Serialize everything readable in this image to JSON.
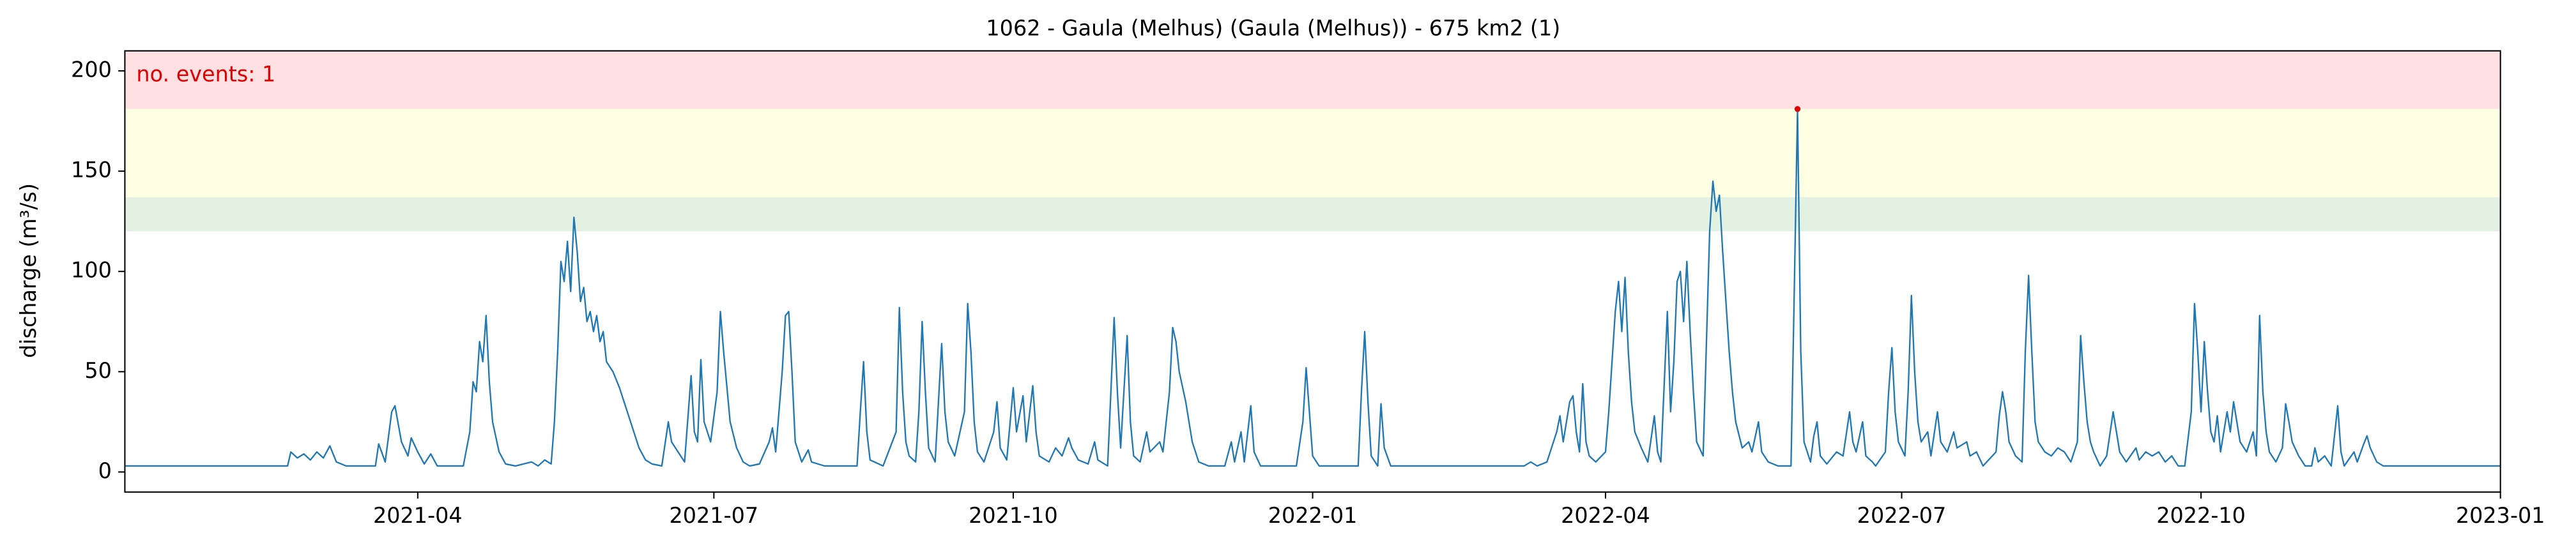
{
  "chart_data": {
    "type": "line",
    "title": "1062 - Gaula (Melhus) (Gaula (Melhus)) - 675 km2 (1)",
    "y_label": "discharge (m³/s)",
    "annotation": "no. events: 1",
    "annotation_color": "#e00000",
    "color": "#1f77b4",
    "xlim": [
      0,
      730
    ],
    "xticks": [
      {
        "value": 90,
        "label": "2021-04"
      },
      {
        "value": 181,
        "label": "2021-07"
      },
      {
        "value": 273,
        "label": "2021-10"
      },
      {
        "value": 365,
        "label": "2022-01"
      },
      {
        "value": 455,
        "label": "2022-04"
      },
      {
        "value": 546,
        "label": "2022-07"
      },
      {
        "value": 638,
        "label": "2022-10"
      },
      {
        "value": 730,
        "label": "2023-01"
      }
    ],
    "ylim": [
      -10,
      210
    ],
    "yticks": [
      0,
      50,
      100,
      150,
      200
    ],
    "thresholds": [
      {
        "value": 120,
        "color": "#e3f1e3"
      },
      {
        "value": 137,
        "color": "#fefee3"
      },
      {
        "value": 181,
        "color": "#ffe1e4"
      }
    ],
    "events": [
      {
        "x": 514,
        "y": 181,
        "color": "#e00000"
      }
    ],
    "x": [
      0,
      50,
      51,
      53,
      55,
      57,
      59,
      61,
      63,
      65,
      68,
      77,
      78,
      80,
      82,
      83,
      85,
      87,
      88,
      90,
      92,
      94,
      96,
      104,
      106,
      107,
      108,
      109,
      110,
      111,
      112,
      113,
      115,
      117,
      120,
      125,
      127,
      129,
      131,
      132,
      133,
      134,
      135,
      136,
      137,
      138,
      139,
      140,
      141,
      142,
      143,
      144,
      145,
      146,
      147,
      148,
      150,
      152,
      154,
      156,
      158,
      160,
      162,
      165,
      167,
      168,
      170,
      172,
      174,
      175,
      176,
      177,
      178,
      180,
      182,
      183,
      184,
      186,
      188,
      190,
      192,
      195,
      198,
      199,
      200,
      202,
      203,
      204,
      205,
      206,
      208,
      210,
      211,
      215,
      225,
      226,
      227,
      228,
      229,
      233,
      237,
      238,
      239,
      240,
      241,
      243,
      244,
      245,
      246,
      247,
      249,
      251,
      252,
      253,
      255,
      258,
      259,
      260,
      261,
      262,
      264,
      267,
      268,
      269,
      271,
      273,
      274,
      276,
      277,
      279,
      280,
      281,
      284,
      286,
      288,
      290,
      291,
      293,
      296,
      298,
      299,
      302,
      304,
      305,
      306,
      308,
      309,
      310,
      312,
      314,
      315,
      318,
      319,
      321,
      322,
      323,
      324,
      326,
      328,
      330,
      333,
      338,
      340,
      341,
      343,
      344,
      346,
      347,
      349,
      360,
      362,
      363,
      364,
      365,
      367,
      379,
      380,
      381,
      382,
      383,
      385,
      386,
      387,
      389,
      430,
      432,
      434,
      437,
      440,
      441,
      442,
      444,
      445,
      446,
      447,
      448,
      449,
      450,
      452,
      455,
      456,
      457,
      458,
      459,
      460,
      461,
      462,
      463,
      464,
      466,
      468,
      470,
      471,
      472,
      474,
      475,
      476,
      477,
      478,
      479,
      480,
      481,
      482,
      483,
      485,
      487,
      488,
      489,
      490,
      491,
      492,
      493,
      494,
      495,
      497,
      499,
      500,
      502,
      503,
      505,
      508,
      512,
      513,
      514,
      515,
      516,
      518,
      519,
      520,
      521,
      523,
      526,
      528,
      530,
      531,
      532,
      534,
      535,
      537,
      538,
      541,
      542,
      543,
      544,
      545,
      547,
      548,
      549,
      550,
      551,
      552,
      554,
      555,
      557,
      558,
      560,
      562,
      563,
      566,
      567,
      569,
      571,
      575,
      576,
      577,
      578,
      579,
      581,
      583,
      584,
      585,
      586,
      587,
      588,
      590,
      592,
      594,
      596,
      598,
      600,
      601,
      602,
      603,
      604,
      605,
      607,
      609,
      611,
      612,
      613,
      615,
      618,
      619,
      621,
      623,
      625,
      627,
      629,
      631,
      633,
      635,
      636,
      637,
      638,
      639,
      640,
      641,
      642,
      643,
      644,
      646,
      647,
      648,
      649,
      650,
      652,
      654,
      655,
      656,
      657,
      658,
      659,
      661,
      663,
      664,
      665,
      666,
      668,
      670,
      672,
      673,
      674,
      676,
      678,
      680,
      681,
      682,
      685,
      686,
      688,
      689,
      690,
      692,
      694,
      730
    ],
    "values": [
      3,
      3,
      10,
      7,
      9,
      6,
      10,
      7,
      13,
      5,
      3,
      3,
      14,
      5,
      30,
      33,
      15,
      8,
      17,
      10,
      4,
      9,
      3,
      3,
      20,
      45,
      40,
      65,
      55,
      78,
      45,
      25,
      10,
      4,
      3,
      5,
      3,
      6,
      4,
      25,
      60,
      105,
      95,
      115,
      90,
      127,
      110,
      85,
      92,
      75,
      80,
      70,
      78,
      65,
      70,
      55,
      50,
      42,
      32,
      22,
      12,
      6,
      4,
      3,
      25,
      15,
      10,
      5,
      48,
      20,
      15,
      56,
      25,
      15,
      40,
      80,
      60,
      25,
      12,
      5,
      3,
      4,
      15,
      22,
      10,
      50,
      78,
      80,
      50,
      15,
      5,
      11,
      5,
      3,
      3,
      30,
      55,
      20,
      6,
      3,
      20,
      82,
      40,
      15,
      8,
      5,
      30,
      75,
      40,
      12,
      5,
      64,
      30,
      15,
      8,
      30,
      84,
      60,
      25,
      10,
      5,
      20,
      35,
      12,
      6,
      42,
      20,
      38,
      15,
      43,
      20,
      8,
      5,
      12,
      8,
      17,
      12,
      6,
      4,
      15,
      6,
      3,
      77,
      40,
      12,
      68,
      25,
      8,
      5,
      20,
      10,
      15,
      10,
      40,
      72,
      65,
      50,
      35,
      15,
      5,
      3,
      3,
      15,
      5,
      20,
      5,
      33,
      10,
      3,
      3,
      25,
      52,
      30,
      8,
      3,
      3,
      40,
      70,
      35,
      8,
      3,
      34,
      12,
      3,
      3,
      5,
      3,
      5,
      20,
      28,
      15,
      35,
      38,
      20,
      10,
      44,
      15,
      8,
      5,
      10,
      30,
      55,
      80,
      95,
      70,
      97,
      60,
      35,
      20,
      12,
      5,
      28,
      10,
      5,
      80,
      30,
      55,
      95,
      100,
      75,
      105,
      70,
      40,
      15,
      8,
      120,
      145,
      130,
      138,
      110,
      85,
      60,
      40,
      25,
      12,
      15,
      10,
      25,
      10,
      5,
      3,
      3,
      90,
      181,
      60,
      15,
      5,
      18,
      25,
      8,
      4,
      10,
      8,
      30,
      15,
      10,
      25,
      8,
      5,
      3,
      10,
      40,
      62,
      30,
      15,
      8,
      40,
      88,
      50,
      25,
      15,
      20,
      8,
      30,
      15,
      10,
      20,
      12,
      15,
      8,
      10,
      3,
      10,
      28,
      40,
      30,
      15,
      8,
      5,
      60,
      98,
      60,
      25,
      15,
      10,
      8,
      12,
      10,
      5,
      15,
      68,
      45,
      25,
      15,
      10,
      3,
      8,
      30,
      20,
      10,
      5,
      12,
      6,
      10,
      8,
      10,
      5,
      8,
      3,
      3,
      30,
      84,
      60,
      30,
      65,
      40,
      20,
      15,
      28,
      10,
      30,
      20,
      35,
      25,
      15,
      10,
      20,
      8,
      78,
      40,
      20,
      10,
      5,
      12,
      34,
      25,
      15,
      8,
      3,
      3,
      12,
      5,
      8,
      3,
      33,
      10,
      3,
      10,
      5,
      14,
      18,
      12,
      5,
      3,
      3
    ]
  }
}
